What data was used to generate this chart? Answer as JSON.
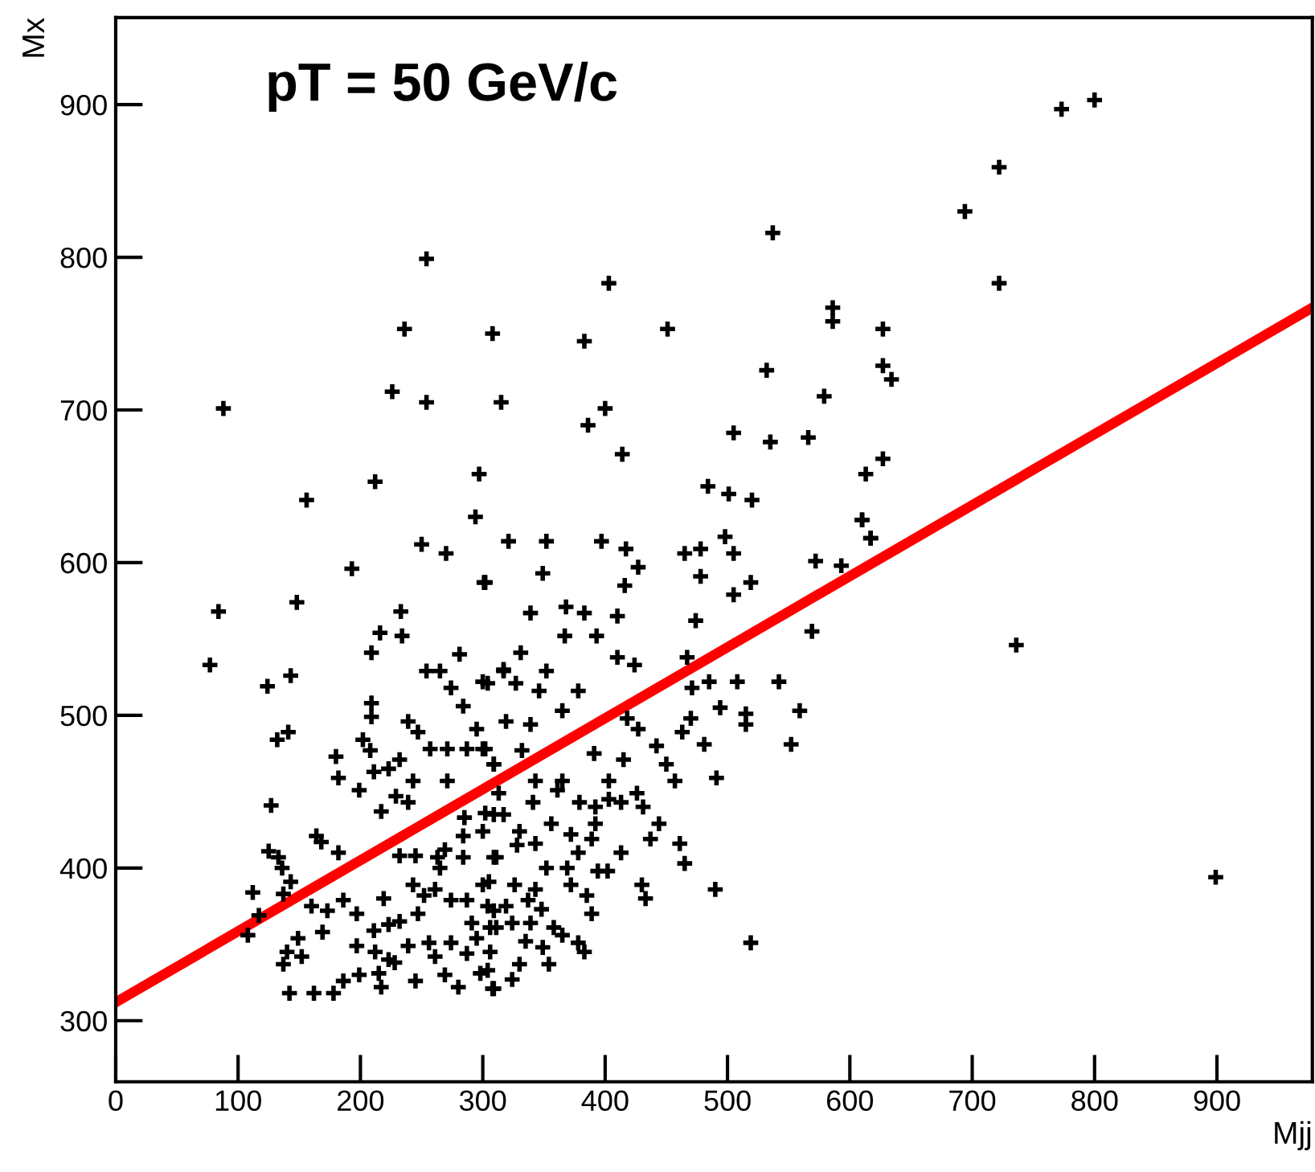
{
  "chart_data": {
    "type": "scatter",
    "xlabel": "Mjj",
    "ylabel": "Mx",
    "annotations": [
      "pT = 50 GeV/c"
    ],
    "xlim": [
      0,
      978
    ],
    "ylim": [
      260,
      957
    ],
    "xticks": [
      0,
      100,
      200,
      300,
      400,
      500,
      600,
      700,
      800,
      900
    ],
    "yticks": [
      300,
      400,
      500,
      600,
      700,
      800,
      900
    ],
    "grid": false,
    "legend": false,
    "series": [
      {
        "type": "scatter",
        "marker": "cross",
        "color": "#000000",
        "x": [
          88,
          254,
          236,
          308,
          403,
          383,
          451,
          226,
          254,
          315,
          400,
          386,
          414,
          156,
          212,
          297,
          294,
          773,
          800,
          722,
          694,
          722,
          537,
          586,
          586,
          627,
          532,
          627,
          634,
          579,
          505,
          535,
          566,
          484,
          501,
          520,
          613,
          627,
          610,
          736,
          899,
          617,
          321,
          352,
          397,
          417,
          427,
          302,
          349,
          416,
          465,
          478,
          478,
          498,
          505,
          519,
          505,
          572,
          593,
          610,
          617,
          569,
          339,
          368,
          383,
          410,
          367,
          393,
          474,
          331,
          317,
          352,
          304,
          327,
          346,
          378,
          410,
          424,
          365,
          467,
          485,
          471,
          508,
          542,
          319,
          339,
          418,
          427,
          470,
          494,
          515,
          515,
          559,
          463,
          552,
          481,
          302,
          332,
          391,
          415,
          442,
          450,
          457,
          491,
          309,
          343,
          365,
          403,
          313,
          341,
          361,
          379,
          392,
          403,
          413,
          426,
          431,
          317,
          356,
          392,
          444,
          330,
          372,
          389,
          437,
          461,
          328,
          343,
          378,
          413,
          465,
          311,
          352,
          369,
          394,
          402,
          305,
          326,
          343,
          372,
          385,
          430,
          433,
          490,
          304,
          319,
          337,
          348,
          389,
          306,
          324,
          339,
          358,
          365,
          335,
          378,
          349,
          306,
          383,
          304,
          330,
          354,
          324,
          308,
          519,
          84,
          77,
          148,
          193,
          250,
          270,
          301,
          124,
          143,
          132,
          141,
          127,
          233,
          216,
          234,
          209,
          254,
          265,
          274,
          281,
          284,
          300,
          317,
          209,
          209,
          239,
          247,
          202,
          208,
          180,
          211,
          182,
          223,
          232,
          243,
          257,
          271,
          287,
          300,
          271,
          295,
          309,
          199,
          217,
          229,
          239,
          164,
          168,
          182,
          125,
          133,
          136,
          143,
          137,
          112,
          117,
          108,
          160,
          173,
          169,
          149,
          140,
          152,
          137,
          186,
          197,
          197,
          211,
          212,
          142,
          162,
          178,
          186,
          199,
          215,
          217,
          223,
          228,
          239,
          245,
          223,
          232,
          247,
          219,
          243,
          252,
          256,
          261,
          269,
          280,
          274,
          287,
          295,
          309,
          298,
          265,
          284,
          261,
          274,
          287,
          300,
          309,
          291,
          309,
          311,
          302,
          285,
          284,
          269,
          263,
          300,
          309,
          245,
          232
        ],
        "values": [
          701,
          799,
          753,
          750,
          783,
          745,
          753,
          712,
          705,
          705,
          701,
          690,
          671,
          641,
          653,
          658,
          630,
          897,
          903,
          859,
          830,
          783,
          816,
          767,
          758,
          753,
          726,
          729,
          720,
          709,
          685,
          679,
          682,
          650,
          645,
          641,
          658,
          668,
          628,
          546,
          394,
          616,
          614,
          614,
          614,
          609,
          597,
          587,
          593,
          585,
          606,
          609,
          591,
          617,
          606,
          587,
          579,
          601,
          598,
          628,
          616,
          555,
          567,
          571,
          567,
          565,
          552,
          552,
          562,
          541,
          530,
          529,
          521,
          521,
          516,
          516,
          538,
          533,
          503,
          538,
          522,
          518,
          522,
          522,
          496,
          494,
          498,
          491,
          498,
          505,
          501,
          494,
          503,
          489,
          481,
          481,
          478,
          477,
          475,
          471,
          480,
          468,
          457,
          459,
          468,
          457,
          457,
          457,
          449,
          443,
          451,
          443,
          440,
          445,
          443,
          449,
          440,
          435,
          429,
          429,
          429,
          424,
          422,
          419,
          419,
          416,
          415,
          416,
          410,
          410,
          403,
          407,
          400,
          400,
          398,
          398,
          391,
          389,
          386,
          389,
          382,
          389,
          380,
          386,
          375,
          375,
          379,
          373,
          370,
          361,
          364,
          364,
          361,
          356,
          352,
          351,
          348,
          345,
          345,
          333,
          337,
          337,
          327,
          321,
          351,
          568,
          533,
          574,
          596,
          612,
          606,
          587,
          519,
          526,
          484,
          489,
          441,
          568,
          554,
          552,
          541,
          529,
          529,
          518,
          540,
          506,
          522,
          529,
          508,
          499,
          496,
          489,
          484,
          477,
          473,
          463,
          459,
          465,
          471,
          457,
          478,
          478,
          478,
          478,
          457,
          491,
          468,
          451,
          437,
          447,
          443,
          421,
          417,
          410,
          411,
          407,
          400,
          391,
          383,
          384,
          369,
          356,
          375,
          372,
          358,
          354,
          345,
          342,
          337,
          379,
          370,
          349,
          359,
          345,
          318,
          318,
          318,
          326,
          330,
          331,
          322,
          340,
          338,
          349,
          326,
          363,
          365,
          370,
          380,
          389,
          382,
          351,
          342,
          330,
          322,
          351,
          344,
          354,
          321,
          331,
          400,
          407,
          386,
          379,
          379,
          389,
          407,
          364,
          372,
          361,
          436,
          433,
          421,
          412,
          407,
          424,
          435,
          408,
          408
        ]
      },
      {
        "type": "line",
        "marker": "none",
        "line_style": "solid",
        "color": "#ff0000",
        "x": [
          0,
          978
        ],
        "values": [
          312,
          767
        ]
      }
    ]
  }
}
